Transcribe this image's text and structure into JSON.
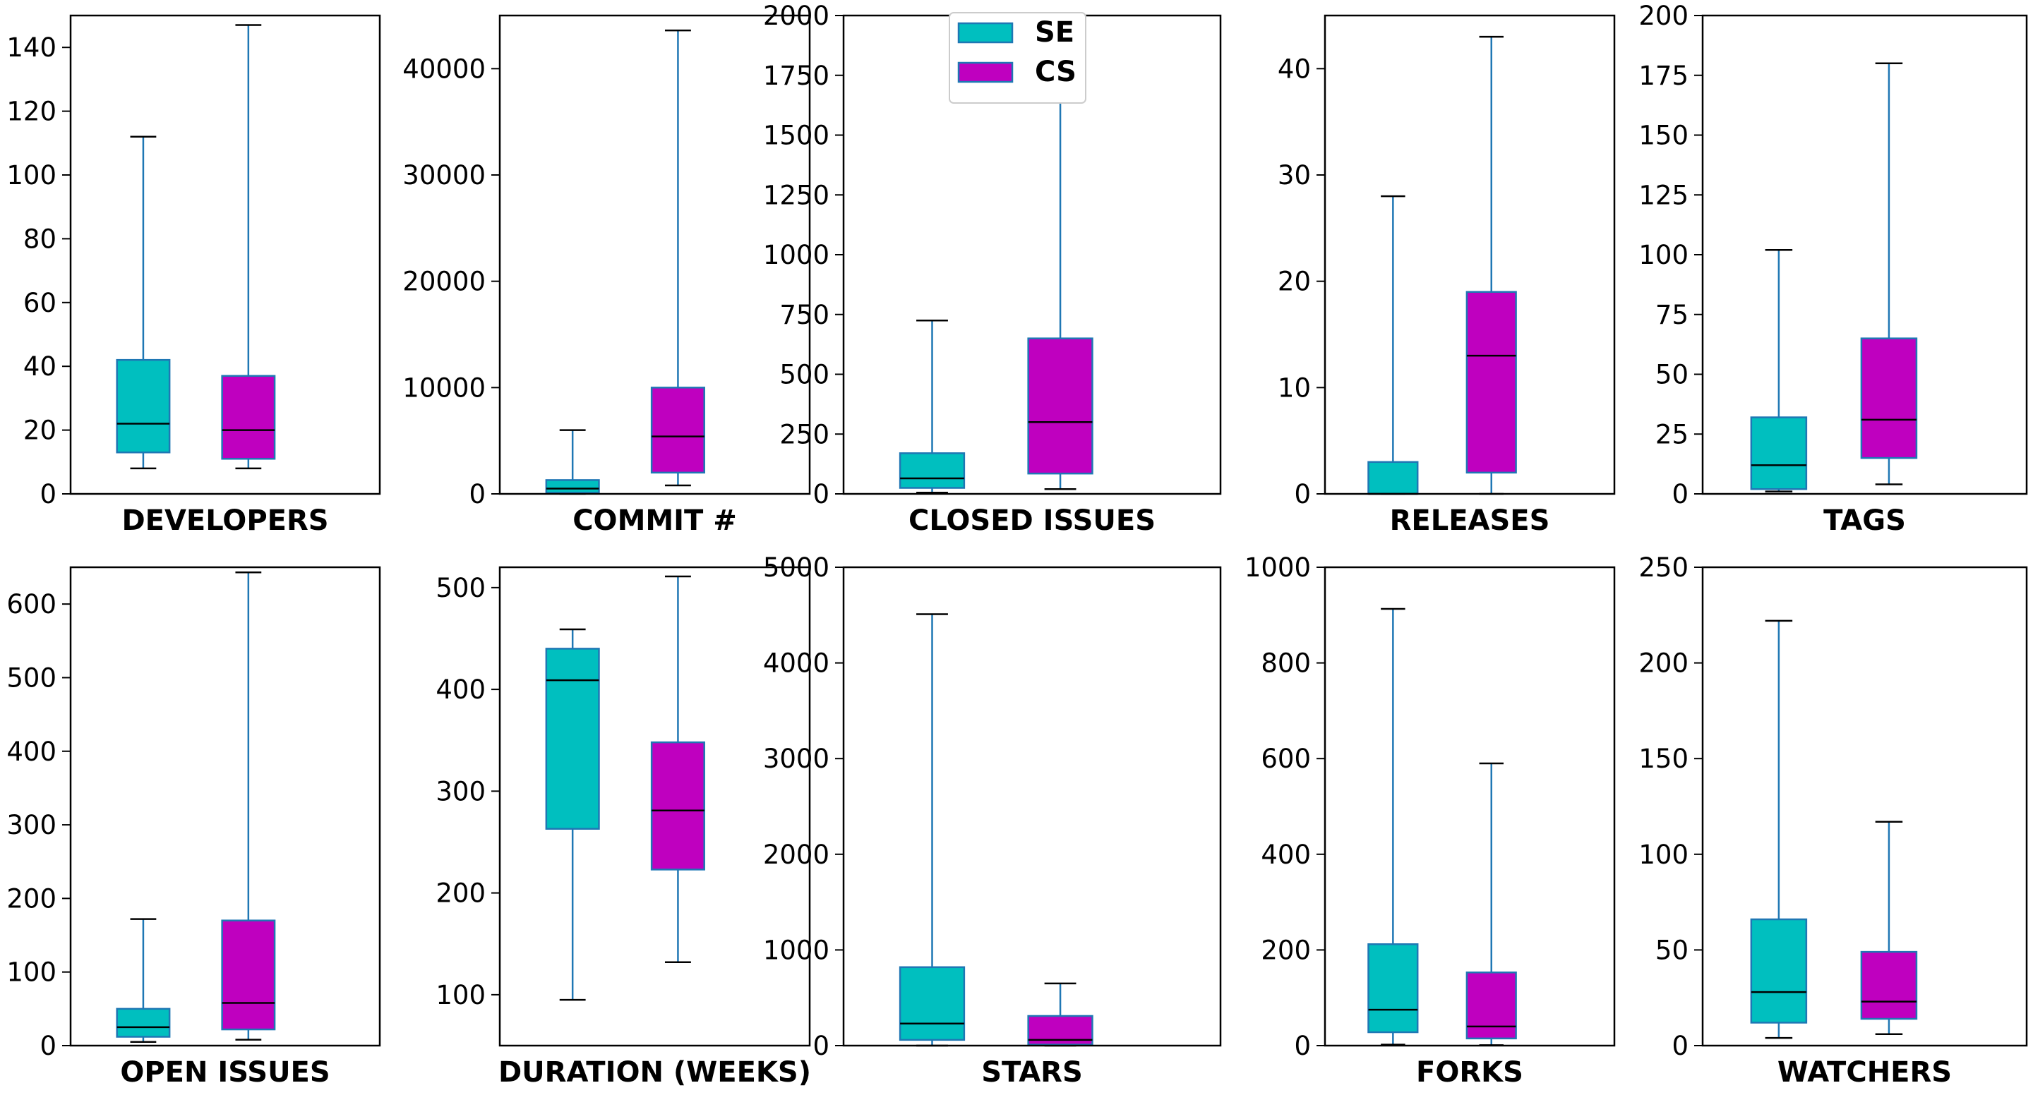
{
  "chart_data": [
    {
      "type": "box",
      "xlabel": "DEVELOPERS",
      "ylim": [
        0,
        150
      ],
      "yticks": [
        0,
        20,
        40,
        60,
        80,
        100,
        120,
        140
      ],
      "series": [
        {
          "name": "SE",
          "whisker_low": 8,
          "q1": 13,
          "median": 22,
          "q3": 42,
          "whisker_high": 112
        },
        {
          "name": "CS",
          "whisker_low": 8,
          "q1": 11,
          "median": 20,
          "q3": 37,
          "whisker_high": 147
        }
      ]
    },
    {
      "type": "box",
      "xlabel": "COMMIT #",
      "ylim": [
        0,
        45000
      ],
      "yticks": [
        0,
        10000,
        20000,
        30000,
        40000
      ],
      "series": [
        {
          "name": "SE",
          "whisker_low": 0,
          "q1": 100,
          "median": 500,
          "q3": 1300,
          "whisker_high": 6000
        },
        {
          "name": "CS",
          "whisker_low": 800,
          "q1": 2000,
          "median": 5400,
          "q3": 10000,
          "whisker_high": 43600
        }
      ]
    },
    {
      "type": "box",
      "xlabel": "CLOSED ISSUES",
      "ylim": [
        0,
        2000
      ],
      "yticks": [
        0,
        250,
        500,
        750,
        1000,
        1250,
        1500,
        1750,
        2000
      ],
      "series": [
        {
          "name": "SE",
          "whisker_low": 5,
          "q1": 25,
          "median": 65,
          "q3": 170,
          "whisker_high": 725
        },
        {
          "name": "CS",
          "whisker_low": 20,
          "q1": 85,
          "median": 300,
          "q3": 650,
          "whisker_high": 1875
        }
      ]
    },
    {
      "type": "box",
      "xlabel": "RELEASES",
      "ylim": [
        0,
        45
      ],
      "yticks": [
        0,
        10,
        20,
        30,
        40
      ],
      "series": [
        {
          "name": "SE",
          "whisker_low": 0,
          "q1": 0,
          "median": 0,
          "q3": 3,
          "whisker_high": 28
        },
        {
          "name": "CS",
          "whisker_low": 0,
          "q1": 2,
          "median": 13,
          "q3": 19,
          "whisker_high": 43
        }
      ]
    },
    {
      "type": "box",
      "xlabel": "TAGS",
      "ylim": [
        0,
        200
      ],
      "yticks": [
        0,
        25,
        50,
        75,
        100,
        125,
        150,
        175,
        200
      ],
      "series": [
        {
          "name": "SE",
          "whisker_low": 1,
          "q1": 2,
          "median": 12,
          "q3": 32,
          "whisker_high": 102
        },
        {
          "name": "CS",
          "whisker_low": 4,
          "q1": 15,
          "median": 31,
          "q3": 65,
          "whisker_high": 180
        }
      ]
    },
    {
      "type": "box",
      "xlabel": "OPEN ISSUES",
      "ylim": [
        0,
        650
      ],
      "yticks": [
        0,
        100,
        200,
        300,
        400,
        500,
        600
      ],
      "series": [
        {
          "name": "SE",
          "whisker_low": 5,
          "q1": 12,
          "median": 25,
          "q3": 50,
          "whisker_high": 172
        },
        {
          "name": "CS",
          "whisker_low": 8,
          "q1": 22,
          "median": 58,
          "q3": 170,
          "whisker_high": 643
        }
      ]
    },
    {
      "type": "box",
      "xlabel": "DURATION (WEEKS)",
      "ylim": [
        50,
        520
      ],
      "yticks": [
        100,
        200,
        300,
        400,
        500
      ],
      "series": [
        {
          "name": "SE",
          "whisker_low": 95,
          "q1": 263,
          "median": 409,
          "q3": 440,
          "whisker_high": 459
        },
        {
          "name": "CS",
          "whisker_low": 132,
          "q1": 223,
          "median": 281,
          "q3": 348,
          "whisker_high": 511
        }
      ]
    },
    {
      "type": "box",
      "xlabel": "STARS",
      "ylim": [
        0,
        5000
      ],
      "yticks": [
        0,
        1000,
        2000,
        3000,
        4000,
        5000
      ],
      "series": [
        {
          "name": "SE",
          "whisker_low": 0,
          "q1": 60,
          "median": 230,
          "q3": 820,
          "whisker_high": 4510
        },
        {
          "name": "CS",
          "whisker_low": 0,
          "q1": 10,
          "median": 60,
          "q3": 310,
          "whisker_high": 650
        }
      ]
    },
    {
      "type": "box",
      "xlabel": "FORKS",
      "ylim": [
        0,
        1000
      ],
      "yticks": [
        0,
        200,
        400,
        600,
        800,
        1000
      ],
      "series": [
        {
          "name": "SE",
          "whisker_low": 2,
          "q1": 28,
          "median": 75,
          "q3": 212,
          "whisker_high": 913
        },
        {
          "name": "CS",
          "whisker_low": 1,
          "q1": 15,
          "median": 40,
          "q3": 153,
          "whisker_high": 590
        }
      ]
    },
    {
      "type": "box",
      "xlabel": "WATCHERS",
      "ylim": [
        0,
        250
      ],
      "yticks": [
        0,
        50,
        100,
        150,
        200,
        250
      ],
      "series": [
        {
          "name": "SE",
          "whisker_low": 4,
          "q1": 12,
          "median": 28,
          "q3": 66,
          "whisker_high": 222
        },
        {
          "name": "CS",
          "whisker_low": 6,
          "q1": 14,
          "median": 23,
          "q3": 49,
          "whisker_high": 117
        }
      ]
    }
  ],
  "legend": {
    "location": "top, over third panel",
    "entries": [
      {
        "label": "SE",
        "color": "#00bfbf"
      },
      {
        "label": "CS",
        "color": "#bf00bf"
      }
    ]
  },
  "colors": {
    "SE": "#00bfbf",
    "CS": "#bf00bf",
    "box_edge": "#1f77b4",
    "whisker": "#1f77b4",
    "median": "#000000"
  },
  "grid": false
}
